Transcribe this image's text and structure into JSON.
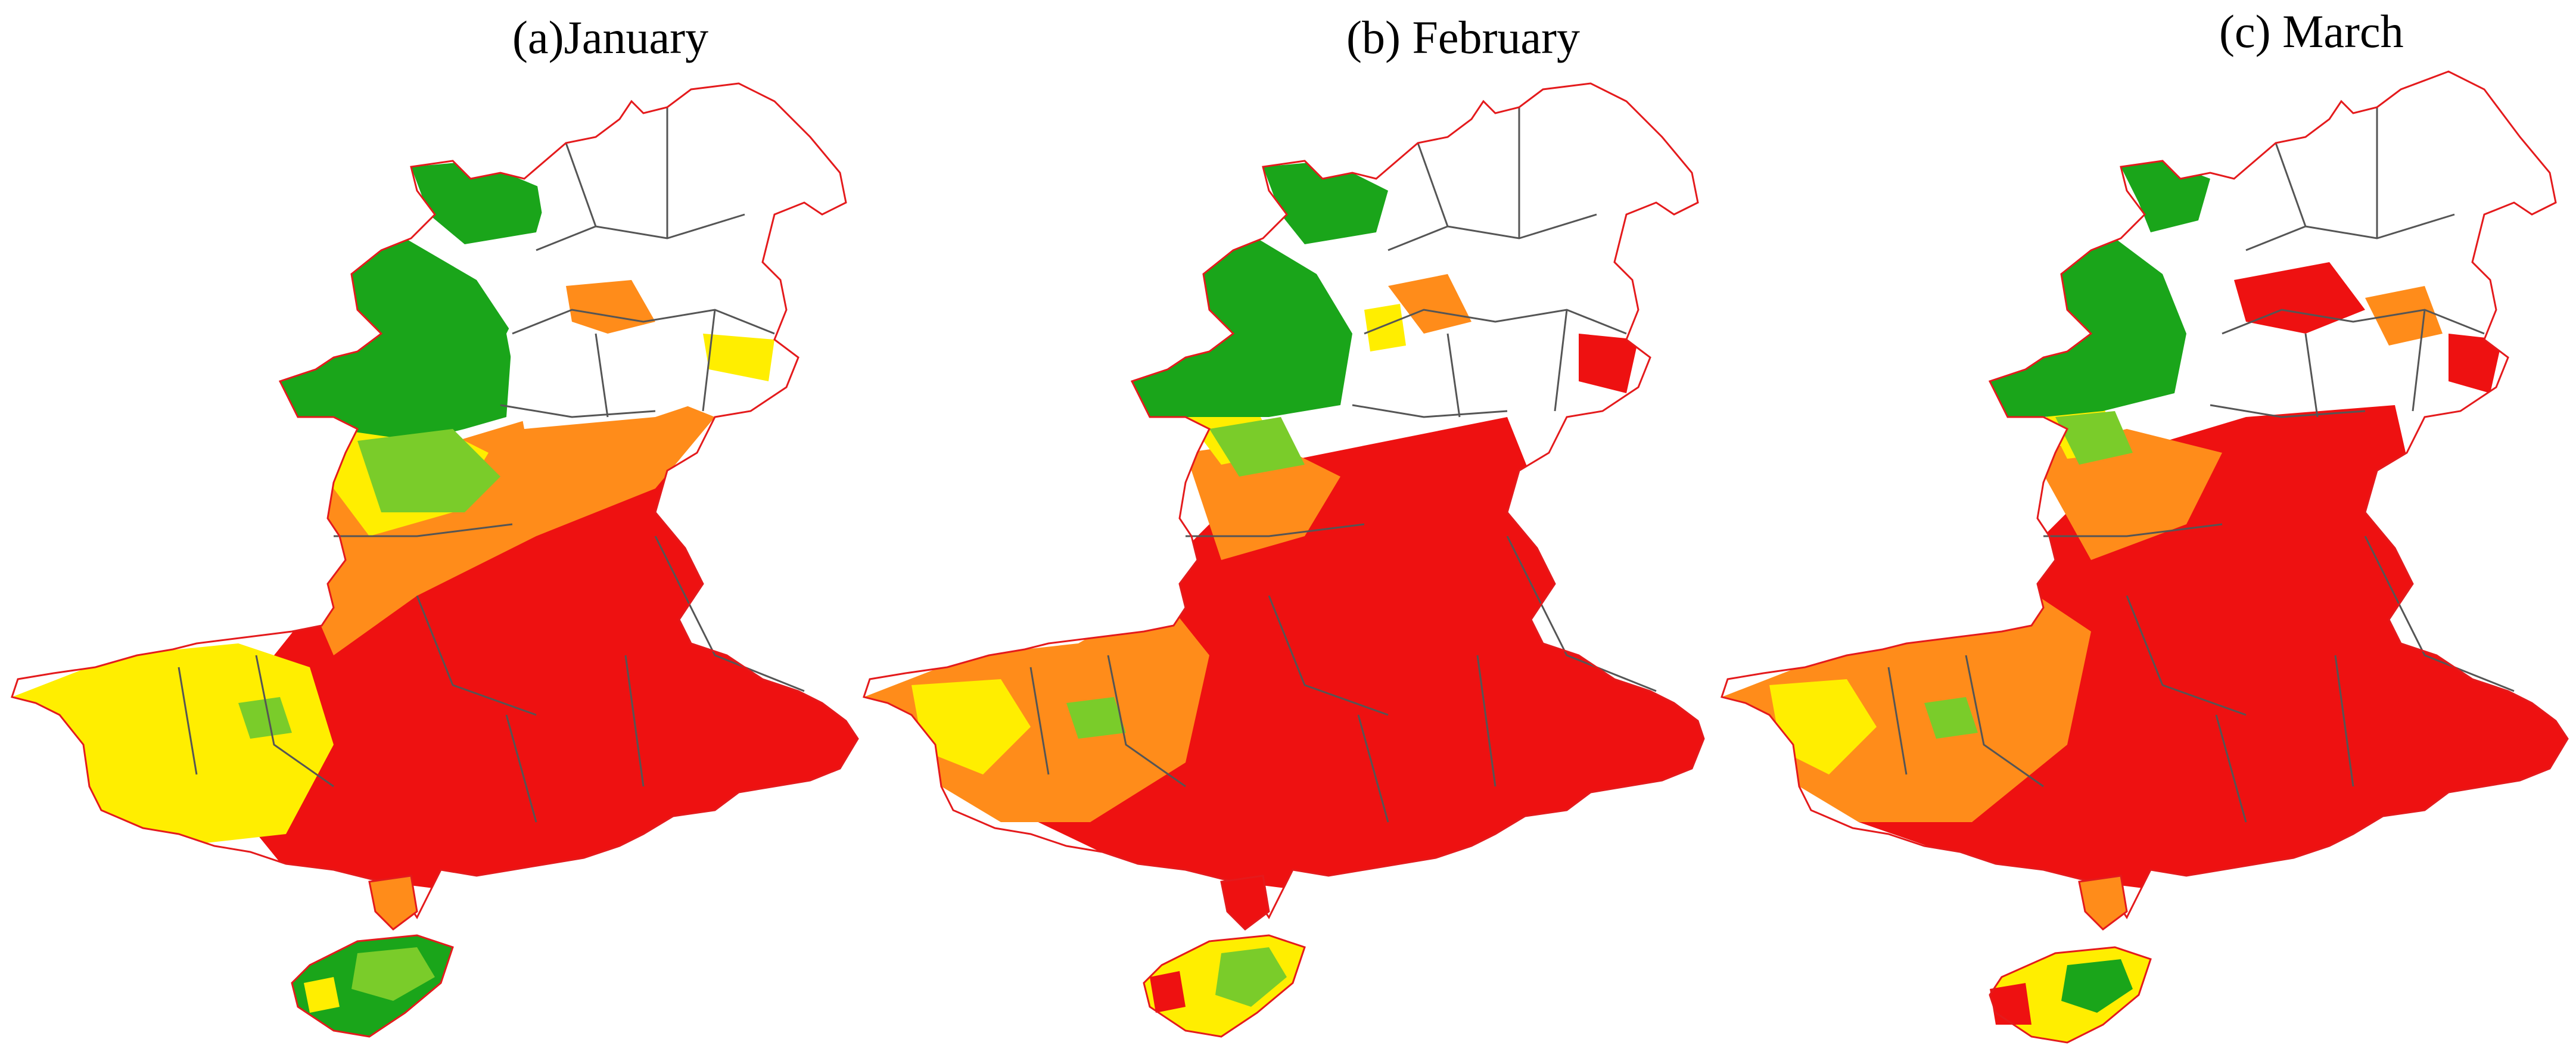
{
  "figure": {
    "panels": [
      {
        "id": "a",
        "title": "(a)January"
      },
      {
        "id": "b",
        "title": "(b) February"
      },
      {
        "id": "c",
        "title": "(c) March"
      }
    ]
  },
  "colors": {
    "boundary_outer": "#e41a1c",
    "boundary_inner": "#555555",
    "class_green": "#1aa51a",
    "class_lightgreen": "#7acc2a",
    "class_yellow": "#ffee00",
    "class_orange": "#ff8c1a",
    "class_red": "#ee1111",
    "no_data": "#ffffff"
  }
}
